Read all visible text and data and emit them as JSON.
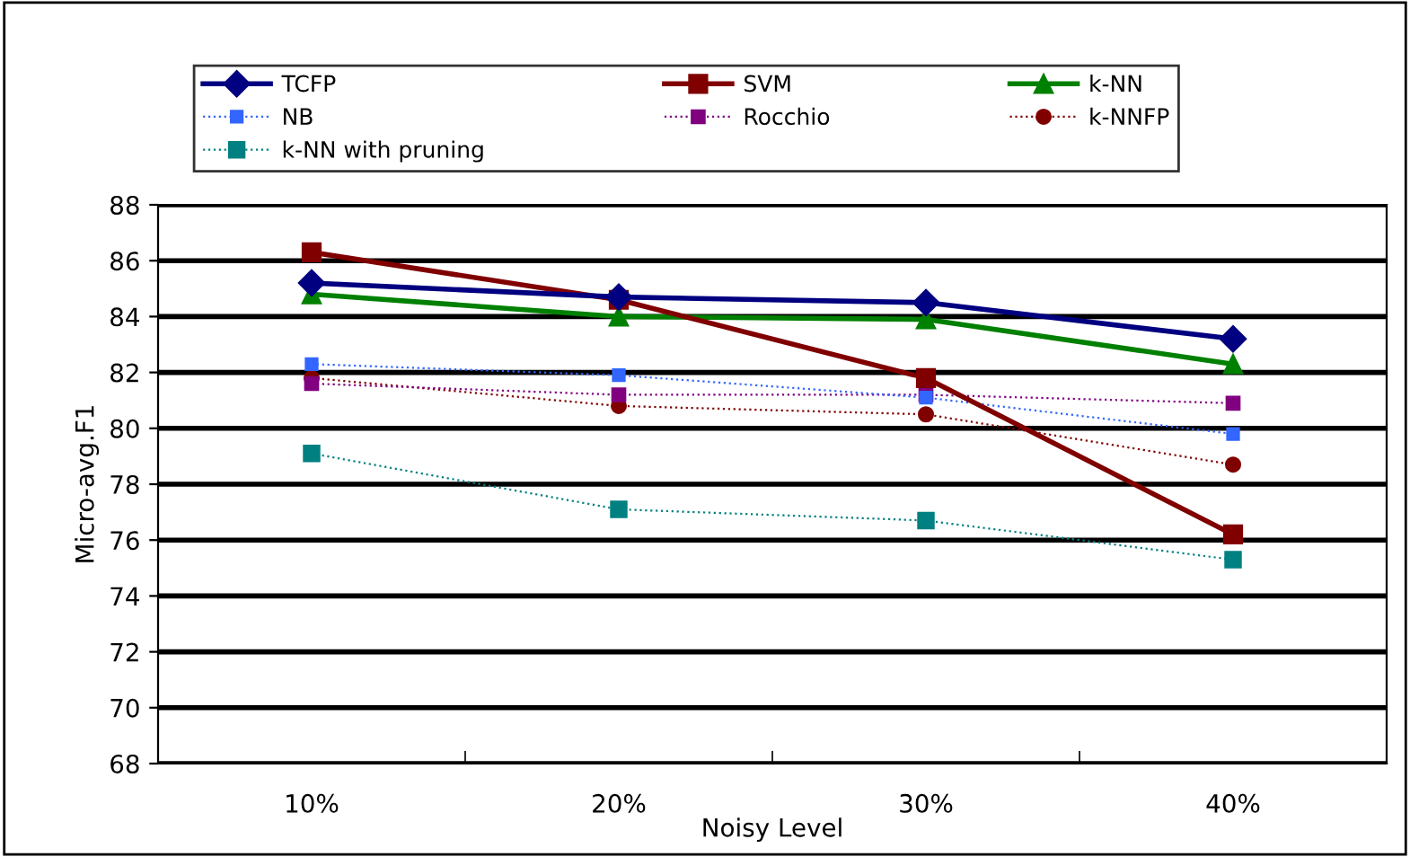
{
  "chart_data": {
    "type": "line",
    "xlabel": "Noisy Level",
    "ylabel": "Micro-avg.F1",
    "categories": [
      "10%",
      "20%",
      "30%",
      "40%"
    ],
    "series": [
      {
        "name": "TCFP",
        "color": "#000080",
        "marker": "diamond",
        "line_style": "solid",
        "values": [
          85.2,
          84.7,
          84.5,
          83.2
        ]
      },
      {
        "name": "SVM",
        "color": "#800000",
        "marker": "square",
        "line_style": "solid",
        "values": [
          86.3,
          84.6,
          81.8,
          76.2
        ]
      },
      {
        "name": "k-NN",
        "color": "#008000",
        "marker": "triangle",
        "line_style": "solid",
        "values": [
          84.8,
          84.0,
          83.9,
          82.3
        ]
      },
      {
        "name": "NB",
        "color": "#3366ff",
        "marker": "square",
        "line_style": "dotted",
        "values": [
          82.3,
          81.9,
          81.1,
          79.8
        ]
      },
      {
        "name": "Rocchio",
        "color": "#800080",
        "marker": "square",
        "line_style": "dotted",
        "values": [
          81.6,
          81.2,
          81.2,
          80.9
        ]
      },
      {
        "name": "k-NNFP",
        "color": "#800000",
        "marker": "circle",
        "line_style": "dotted",
        "values": [
          81.8,
          80.8,
          80.5,
          78.7
        ]
      },
      {
        "name": "k-NN with pruning",
        "color": "#008080",
        "marker": "square",
        "line_style": "dotted",
        "values": [
          79.1,
          77.1,
          76.7,
          75.3
        ]
      }
    ],
    "ylim": [
      68,
      88
    ],
    "yticks": [
      68,
      70,
      72,
      74,
      76,
      78,
      80,
      82,
      84,
      86,
      88
    ],
    "grid": "y",
    "legend": "top"
  }
}
